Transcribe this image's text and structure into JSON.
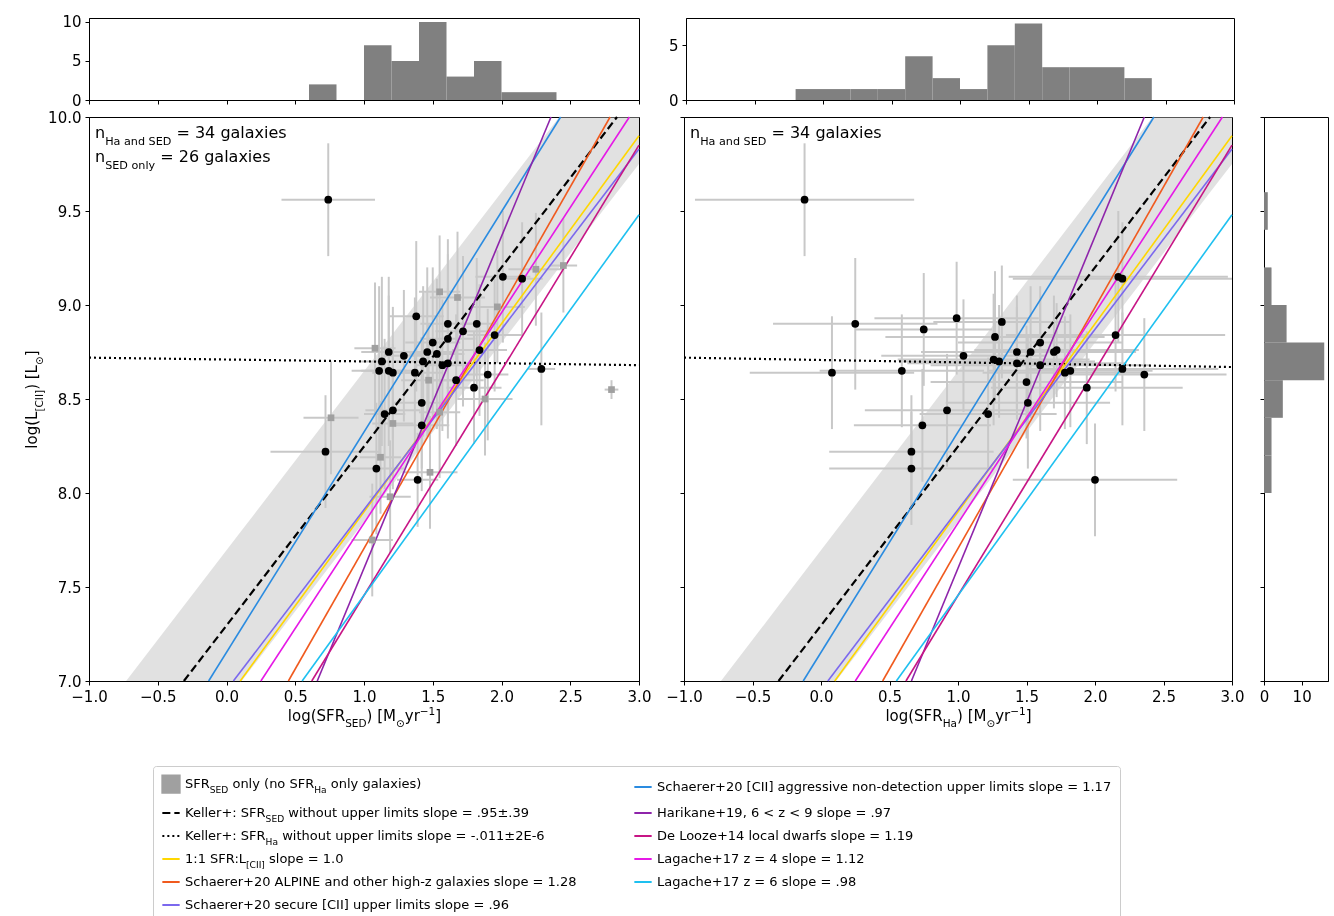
{
  "chart_data": [
    {
      "type": "histogram",
      "bins": [
        0.6,
        0.8,
        1.0,
        1.2,
        1.4,
        1.6,
        1.8,
        2.0,
        2.2,
        2.4
      ],
      "values": [
        2,
        0,
        7,
        5,
        10,
        3,
        5,
        1,
        1
      ],
      "color": "#808080",
      "xlim": [
        -1,
        3
      ],
      "xticks": [
        -1,
        -0.5,
        0,
        0.5,
        1,
        1.5,
        2,
        2.5,
        3
      ],
      "ylim": [
        0,
        10.5
      ],
      "yticks": [
        0,
        5,
        10
      ],
      "tick_labels": "y"
    },
    {
      "type": "histogram",
      "bins": [
        -0.2,
        0,
        0.2,
        0.4,
        0.6,
        0.8,
        1.0,
        1.2,
        1.4,
        1.6,
        1.8,
        2.0,
        2.2,
        2.4
      ],
      "values": [
        1,
        1,
        1,
        1,
        4,
        2,
        1,
        5,
        7,
        3,
        3,
        3,
        2
      ],
      "color": "#808080",
      "xlim": [
        -1,
        3
      ],
      "xticks": [
        -1,
        -0.5,
        0,
        0.5,
        1,
        1.5,
        2,
        2.5,
        3
      ],
      "ylim": [
        0,
        7.5
      ],
      "yticks": [
        0,
        5
      ],
      "tick_labels": "y"
    },
    {
      "type": "scatter",
      "xlabel": "log(SFR$_{SED}$) [M$_{⊙}$yr$^{−1}$]",
      "ylabel": "log(L$_{[CII]}$) [L$_{⊙}$]",
      "xlim": [
        -1,
        3
      ],
      "xticks": [
        {
          "value": -1,
          "label": "−1.0"
        },
        {
          "value": -0.5,
          "label": "−0.5"
        },
        {
          "value": 0,
          "label": "0.0"
        },
        {
          "value": 0.5,
          "label": "0.5"
        },
        {
          "value": 1,
          "label": "1.0"
        },
        {
          "value": 1.5,
          "label": "1.5"
        },
        {
          "value": 2,
          "label": "2.0"
        },
        {
          "value": 2.5,
          "label": "2.5"
        },
        {
          "value": 3,
          "label": "3.0"
        }
      ],
      "ylim": [
        7,
        10
      ],
      "yticks": [
        {
          "value": 7,
          "label": "7.0"
        },
        {
          "value": 7.5,
          "label": "7.5"
        },
        {
          "value": 8,
          "label": "8.0"
        },
        {
          "value": 8.5,
          "label": "8.5"
        },
        {
          "value": 9,
          "label": "9.0"
        },
        {
          "value": 9.5,
          "label": "9.5"
        },
        {
          "value": 10,
          "label": "10.0"
        }
      ],
      "legend": "bottom",
      "annotations": [
        "n$_{Ha and SED}$ = 34 galaxies",
        "n$_{SED only}$ = 26 galaxies"
      ],
      "series": [
        {
          "name": "SFR$_{SED}$ only (no SFR$_{Ha}$ only galaxies)",
          "type": "scatter",
          "marker": "square",
          "color": "#a0a0a0",
          "x": [
            1.55,
            1.68,
            2.25,
            2.45,
            1.08,
            1.47,
            0.76,
            1.21,
            1.12,
            1.48,
            1.88,
            1.55,
            1.97,
            1.19,
            1.06,
            2.8
          ],
          "values": [
            9.07,
            9.04,
            9.19,
            9.21,
            8.77,
            8.6,
            8.4,
            8.37,
            8.19,
            8.11,
            8.5,
            8.43,
            8.99,
            7.98,
            7.75,
            8.55
          ],
          "errors": [
            0.3,
            0.35,
            0.3,
            0.25,
            0.35,
            0.3,
            0.3,
            0.35,
            0.3,
            0.3,
            0.3,
            0.35,
            0.3,
            0.3,
            0.3,
            0.05
          ],
          "xerrors": [
            0.15,
            0.2,
            0.2,
            0.1,
            0.15,
            0.2,
            0.2,
            0.15,
            0.15,
            0.2,
            0.2,
            0.15,
            0.2,
            0.15,
            0.15,
            0.05
          ]
        },
        {
          "name": "Keller+: SFR$_{SED}$ without upper limits slope = .95±.39",
          "type": "line",
          "line_style": "dashed",
          "color": "#000000",
          "x": [
            -0.73,
            -0.31,
            0.11,
            2.42,
            2.84,
            3.0
          ],
          "values": [
            null,
            7.0,
            7.4,
            9.6,
            10.0,
            null
          ],
          "lower": [
            7.0,
            7.0,
            7.0,
            9.2,
            9.6,
            9.75
          ],
          "upper": [
            7.0,
            7.4,
            7.8,
            10.0,
            10.0,
            10.0
          ]
        },
        {
          "name": "Keller+: SFR$_{Ha}$ without upper limits slope = -.011±2E-6",
          "type": "line",
          "line_style": "dotted",
          "color": "#000000",
          "x": [
            -1,
            3
          ],
          "values": [
            8.72,
            8.68
          ]
        },
        {
          "name": "1:1 SFR:L$_{[CII]}$ slope = 1.0",
          "type": "line",
          "line_style": "solid",
          "color": "#ffd700",
          "x": [
            0.1,
            3
          ],
          "values": [
            7,
            9.9
          ]
        },
        {
          "name": "Schaerer+20 ALPINE and other high-z galaxies slope = 1.28",
          "type": "line",
          "line_style": "solid",
          "color": "#f05a1e",
          "x": [
            0.45,
            2.79
          ],
          "values": [
            7,
            10
          ]
        },
        {
          "name": "Schaerer+20 secure [CII] upper limits slope = .96",
          "type": "line",
          "line_style": "solid",
          "color": "#7b68ee",
          "x": [
            0.05,
            3
          ],
          "values": [
            7,
            9.83
          ]
        },
        {
          "name": "Schaerer+20 [CII] aggressive non-detection upper limits slope = 1.17",
          "type": "line",
          "line_style": "solid",
          "color": "#2a8be0",
          "x": [
            -0.13,
            2.43
          ],
          "values": [
            7,
            10
          ]
        },
        {
          "name": "Harikane+19, 6 < z < 9 slope = .97",
          "type": "line",
          "line_style": "solid",
          "color": "#8e24aa",
          "x": [
            0.66,
            2.36
          ],
          "values": [
            7,
            10
          ]
        },
        {
          "name": "De Looze+14 local dwarfs slope = 1.19",
          "type": "line",
          "line_style": "solid",
          "color": "#c71585",
          "x": [
            0.62,
            3
          ],
          "values": [
            7,
            9.85
          ]
        },
        {
          "name": "Lagache+17 z = 4 slope = 1.12",
          "type": "line",
          "line_style": "solid",
          "color": "#e619e6",
          "x": [
            0.25,
            2.93
          ],
          "values": [
            7,
            10
          ]
        },
        {
          "name": "Lagache+17 z = 6 slope = .98",
          "type": "line",
          "line_style": "solid",
          "color": "#1ec0f0",
          "x": [
            0.55,
            3
          ],
          "values": [
            7,
            9.48
          ]
        },
        {
          "type": "scatter",
          "marker": "circle",
          "color": "#000000",
          "x": [
            0.74,
            2.01,
            2.15,
            1.38,
            1.61,
            1.82,
            1.72,
            1.95,
            1.61,
            1.5,
            1.18,
            1.29,
            1.46,
            1.53,
            1.84,
            1.13,
            1.43,
            1.57,
            1.61,
            1.11,
            1.18,
            1.21,
            1.37,
            2.29,
            1.67,
            1.9,
            1.8,
            1.42,
            1.15,
            1.21,
            1.42,
            0.72,
            1.09,
            1.39
          ],
          "values": [
            9.56,
            9.15,
            9.14,
            8.94,
            8.9,
            8.9,
            8.86,
            8.84,
            8.82,
            8.8,
            8.75,
            8.73,
            8.75,
            8.74,
            8.76,
            8.7,
            8.7,
            8.68,
            8.69,
            8.65,
            8.65,
            8.64,
            8.64,
            8.66,
            8.6,
            8.63,
            8.56,
            8.48,
            8.42,
            8.44,
            8.36,
            8.22,
            8.13,
            8.07
          ],
          "errors": [
            0.3,
            0.35,
            0.3,
            0.4,
            0.45,
            0.35,
            0.4,
            0.3,
            0.45,
            0.4,
            0.4,
            0.35,
            0.45,
            0.4,
            0.35,
            0.45,
            0.4,
            0.35,
            0.4,
            0.45,
            0.4,
            0.35,
            0.4,
            0.3,
            0.35,
            0.35,
            0.3,
            0.35,
            0.4,
            0.35,
            0.35,
            0.3,
            0.35,
            0.25
          ],
          "xerrors": [
            0.34,
            0.2,
            0.15,
            0.2,
            0.2,
            0.15,
            0.2,
            0.2,
            0.2,
            0.2,
            0.2,
            0.15,
            0.2,
            0.2,
            0.2,
            0.15,
            0.2,
            0.2,
            0.2,
            0.2,
            0.2,
            0.15,
            0.2,
            0.1,
            0.2,
            0.15,
            0.2,
            0.2,
            0.15,
            0.2,
            0.2,
            0.4,
            0.2,
            0.15
          ]
        }
      ]
    },
    {
      "type": "scatter",
      "xlabel": "log(SFR$_{Ha}$) [M$_{⊙}$yr$^{−1}$]",
      "xlim": [
        -1,
        3
      ],
      "xticks": [
        {
          "value": -1,
          "label": "−1.0"
        },
        {
          "value": -0.5,
          "label": "−0.5"
        },
        {
          "value": 0,
          "label": "0.0"
        },
        {
          "value": 0.5,
          "label": "0.5"
        },
        {
          "value": 1,
          "label": "1.0"
        },
        {
          "value": 1.5,
          "label": "1.5"
        },
        {
          "value": 2,
          "label": "2.0"
        },
        {
          "value": 2.5,
          "label": "2.5"
        },
        {
          "value": 3,
          "label": "3.0"
        }
      ],
      "ylim": [
        7,
        10
      ],
      "yticks": [
        7,
        7.5,
        8,
        8.5,
        9,
        9.5,
        10
      ],
      "tick_labels": "x",
      "annotations": [
        "n$_{Ha and SED}$ = 34 galaxies"
      ],
      "series": [
        {
          "type": "line",
          "line_style": "dashed",
          "color": "#000000",
          "x": [
            -0.73,
            -0.31,
            0.11,
            2.42,
            2.84,
            3.0
          ],
          "values": [
            null,
            7.0,
            7.4,
            9.6,
            10.0,
            null
          ],
          "lower": [
            7.0,
            7.0,
            7.0,
            9.2,
            9.6,
            9.75
          ],
          "upper": [
            7.0,
            7.4,
            7.8,
            10.0,
            10.0,
            10.0
          ]
        },
        {
          "type": "line",
          "line_style": "dotted",
          "color": "#000000",
          "x": [
            -1,
            3
          ],
          "values": [
            8.72,
            8.67
          ]
        },
        {
          "type": "line",
          "line_style": "solid",
          "color": "#ffd700",
          "x": [
            0.1,
            3
          ],
          "values": [
            7,
            9.9
          ]
        },
        {
          "type": "line",
          "line_style": "solid",
          "color": "#f05a1e",
          "x": [
            0.45,
            2.79
          ],
          "values": [
            7,
            10
          ]
        },
        {
          "type": "line",
          "line_style": "solid",
          "color": "#7b68ee",
          "x": [
            0.05,
            3
          ],
          "values": [
            7,
            9.83
          ]
        },
        {
          "type": "line",
          "line_style": "solid",
          "color": "#2a8be0",
          "x": [
            -0.13,
            2.43
          ],
          "values": [
            7,
            10
          ]
        },
        {
          "type": "line",
          "line_style": "solid",
          "color": "#8e24aa",
          "x": [
            0.66,
            2.36
          ],
          "values": [
            7,
            10
          ]
        },
        {
          "type": "line",
          "line_style": "solid",
          "color": "#c71585",
          "x": [
            0.62,
            3
          ],
          "values": [
            7,
            9.85
          ]
        },
        {
          "type": "line",
          "line_style": "solid",
          "color": "#e619e6",
          "x": [
            0.25,
            2.93
          ],
          "values": [
            7,
            10
          ]
        },
        {
          "type": "line",
          "line_style": "solid",
          "color": "#1ec0f0",
          "x": [
            0.55,
            3
          ],
          "values": [
            7,
            9.48
          ]
        },
        {
          "type": "scatter",
          "marker": "circle",
          "color": "#000000",
          "x": [
            -0.12,
            2.17,
            2.2,
            0.25,
            0.99,
            1.32,
            0.75,
            1.27,
            2.15,
            1.6,
            1.43,
            1.53,
            1.7,
            1.72,
            1.04,
            1.26,
            1.3,
            1.43,
            1.6,
            1.78,
            1.82,
            2.2,
            2.36,
            0.08,
            0.59,
            1.5,
            1.94,
            1.51,
            0.92,
            1.22,
            0.74,
            0.66,
            0.66,
            2.0
          ],
          "values": [
            9.56,
            9.15,
            9.14,
            8.9,
            8.93,
            8.91,
            8.87,
            8.83,
            8.84,
            8.8,
            8.75,
            8.75,
            8.75,
            8.76,
            8.73,
            8.71,
            8.7,
            8.69,
            8.68,
            8.64,
            8.65,
            8.66,
            8.63,
            8.64,
            8.65,
            8.59,
            8.56,
            8.48,
            8.44,
            8.42,
            8.36,
            8.22,
            8.13,
            8.07
          ],
          "errors": [
            0.3,
            0.35,
            0.3,
            0.35,
            0.3,
            0.3,
            0.3,
            0.35,
            0.3,
            0.3,
            0.3,
            0.35,
            0.3,
            0.25,
            0.3,
            0.35,
            0.3,
            0.3,
            0.35,
            0.3,
            0.3,
            0.3,
            0.3,
            0.3,
            0.3,
            0.3,
            0.3,
            0.35,
            0.3,
            0.3,
            0.3,
            0.3,
            0.3,
            0.3
          ],
          "xerrors": [
            0.8,
            0.8,
            0.8,
            0.6,
            0.6,
            0.5,
            0.5,
            0.8,
            0.8,
            0.6,
            0.7,
            0.6,
            0.6,
            0.6,
            0.6,
            0.7,
            0.7,
            0.8,
            0.8,
            0.6,
            0.6,
            0.7,
            0.6,
            0.6,
            0.6,
            0.7,
            0.7,
            0.6,
            0.6,
            0.5,
            0.5,
            0.6,
            0.6,
            0.6
          ]
        }
      ]
    },
    {
      "type": "histogram",
      "orientation": "horizontal",
      "bins": [
        8.0,
        8.2,
        8.4,
        8.6,
        8.8,
        9.0,
        9.2,
        9.4,
        9.6
      ],
      "values": [
        2,
        2,
        5,
        16,
        6,
        2,
        0,
        1
      ],
      "color": "#808080",
      "xlim": [
        0,
        17
      ],
      "xticks": [
        0,
        10
      ],
      "ylim": [
        7,
        10
      ],
      "yticks": [
        7,
        7.5,
        8,
        8.5,
        9,
        9.5,
        10
      ],
      "tick_labels": "x"
    }
  ]
}
